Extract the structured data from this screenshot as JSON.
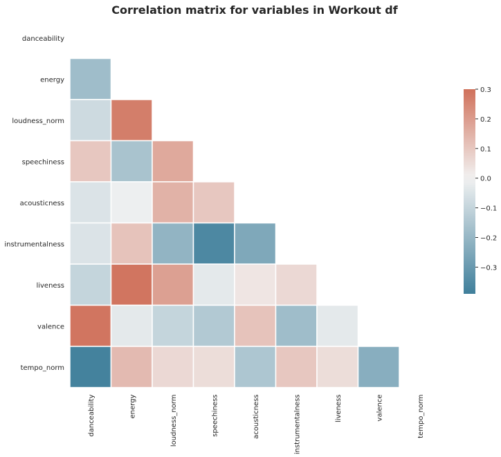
{
  "chart_data": {
    "type": "heatmap",
    "title": "Correlation matrix for variables in Workout df",
    "variables": [
      "danceability",
      "energy",
      "loudness_norm",
      "speechiness",
      "acousticness",
      "instrumentalness",
      "liveness",
      "valence",
      "tempo_norm"
    ],
    "mask": "upper triangle including diagonal",
    "values": [
      [
        null,
        null,
        null,
        null,
        null,
        null,
        null,
        null,
        null
      ],
      [
        -0.18,
        null,
        null,
        null,
        null,
        null,
        null,
        null,
        null
      ],
      [
        -0.08,
        0.27,
        null,
        null,
        null,
        null,
        null,
        null,
        null
      ],
      [
        0.1,
        -0.16,
        0.17,
        null,
        null,
        null,
        null,
        null,
        null
      ],
      [
        -0.05,
        -0.01,
        0.15,
        0.1,
        null,
        null,
        null,
        null,
        null
      ],
      [
        -0.05,
        0.11,
        -0.21,
        -0.36,
        -0.25,
        null,
        null,
        null,
        null
      ],
      [
        -0.1,
        0.29,
        0.19,
        -0.03,
        0.03,
        0.06,
        null,
        null,
        null
      ],
      [
        0.29,
        -0.03,
        -0.1,
        -0.14,
        0.11,
        -0.18,
        -0.03,
        null,
        null
      ],
      [
        -0.38,
        0.13,
        0.06,
        0.05,
        -0.15,
        0.1,
        0.05,
        -0.23,
        null
      ]
    ],
    "colorbar": {
      "min": -0.39,
      "max": 0.3,
      "ticks": [
        0.3,
        0.2,
        0.1,
        0.0,
        -0.1,
        -0.2,
        -0.3
      ],
      "tick_labels": [
        "0.3",
        "0.2",
        "0.1",
        "0.0",
        "−0.1",
        "−0.2",
        "−0.3"
      ]
    },
    "colormap": {
      "negative": "#3f7f9b",
      "center": "#f2f2f2",
      "positive": "#d0715b"
    }
  }
}
